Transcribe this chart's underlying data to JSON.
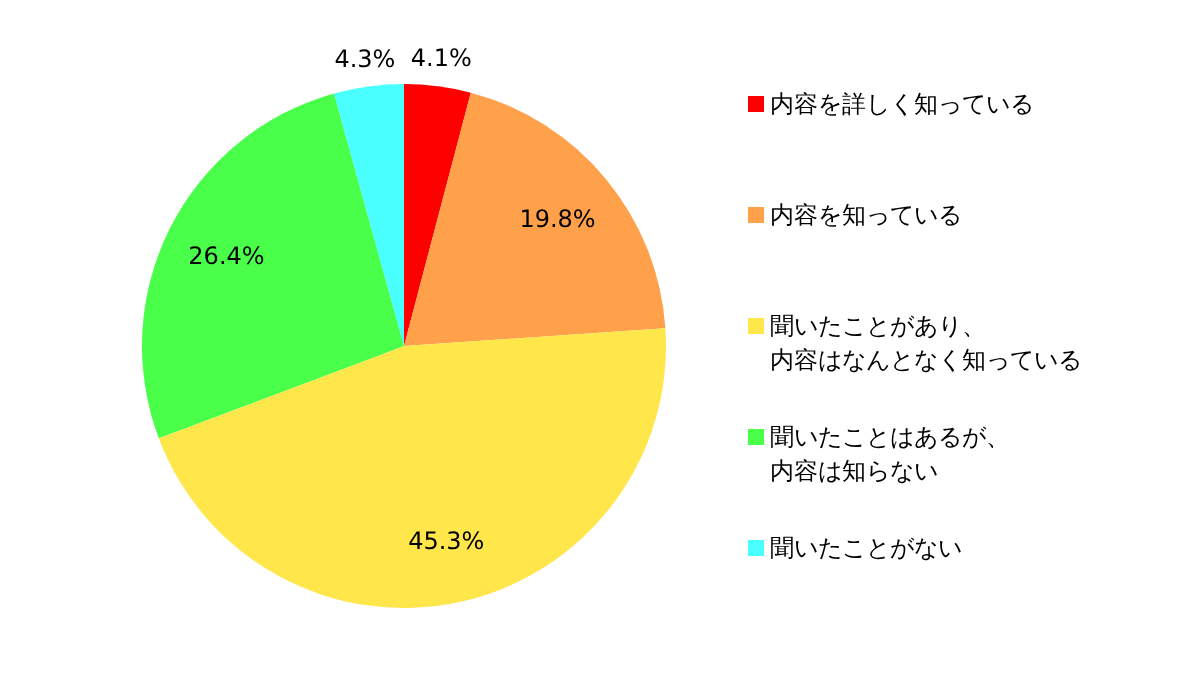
{
  "chart_data": {
    "type": "pie",
    "categories": [
      "内容を詳しく知っている",
      "内容を知っている",
      "聞いたことがあり、内容はなんとなく知っている",
      "聞いたことはあるが、内容は知らない",
      "聞いたことがない"
    ],
    "values": [
      4.1,
      19.8,
      45.3,
      26.4,
      4.3
    ],
    "colors": [
      "#ff0000",
      "#ffa04a",
      "#ffe64a",
      "#4aff4a",
      "#4affff"
    ],
    "value_labels": [
      "4.1%",
      "19.8%",
      "45.3%",
      "26.4%",
      "4.3%"
    ],
    "legend": "right"
  }
}
